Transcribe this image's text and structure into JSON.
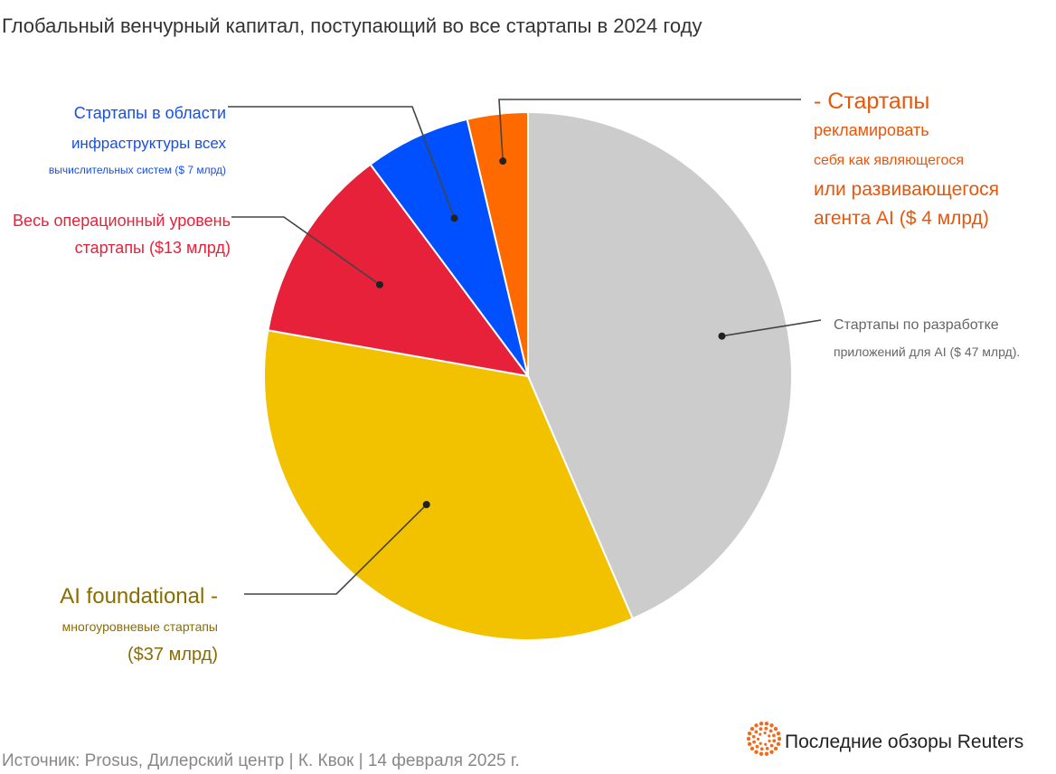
{
  "chart_data": {
    "type": "pie",
    "title": "Глобальный венчурный капитал, поступающий во все стартапы в 2024 году",
    "slices": [
      {
        "value": 47,
        "color": "#cccccc",
        "label_lines": [
          "Стартапы по разработке",
          "приложений для AI ($ 47 млрд)."
        ],
        "label_color": "#666666"
      },
      {
        "value": 37,
        "color": "#f2c200",
        "label_lines": [
          "AI foundational -",
          "многоуровневые стартапы",
          "($37 млрд)"
        ],
        "label_color": "#8a6d00"
      },
      {
        "value": 13,
        "color": "#e8213a",
        "label_lines": [
          "Весь операционный уровень",
          "стартапы ($13 млрд)"
        ],
        "label_color": "#e8213a"
      },
      {
        "value": 7,
        "color": "#0050ff",
        "label_lines": [
          "Стартапы в области",
          "инфраструктуры всех",
          "вычислительных систем ($ 7 млрд)"
        ],
        "label_color": "#1a4fe0"
      },
      {
        "value": 4,
        "color": "#ff6a00",
        "label_lines": [
          "- Стартапы",
          "рекламировать",
          "себя как являющегося",
          "или развивающегося",
          "агента AI ($ 4 млрд)"
        ],
        "label_color": "#e8560a"
      }
    ],
    "legend": "none"
  },
  "footer": {
    "source": "Источник: Prosus, Дилерский центр | К. Квок | 14 февраля 2025 г.",
    "brand": "Последние обзоры Reuters"
  }
}
